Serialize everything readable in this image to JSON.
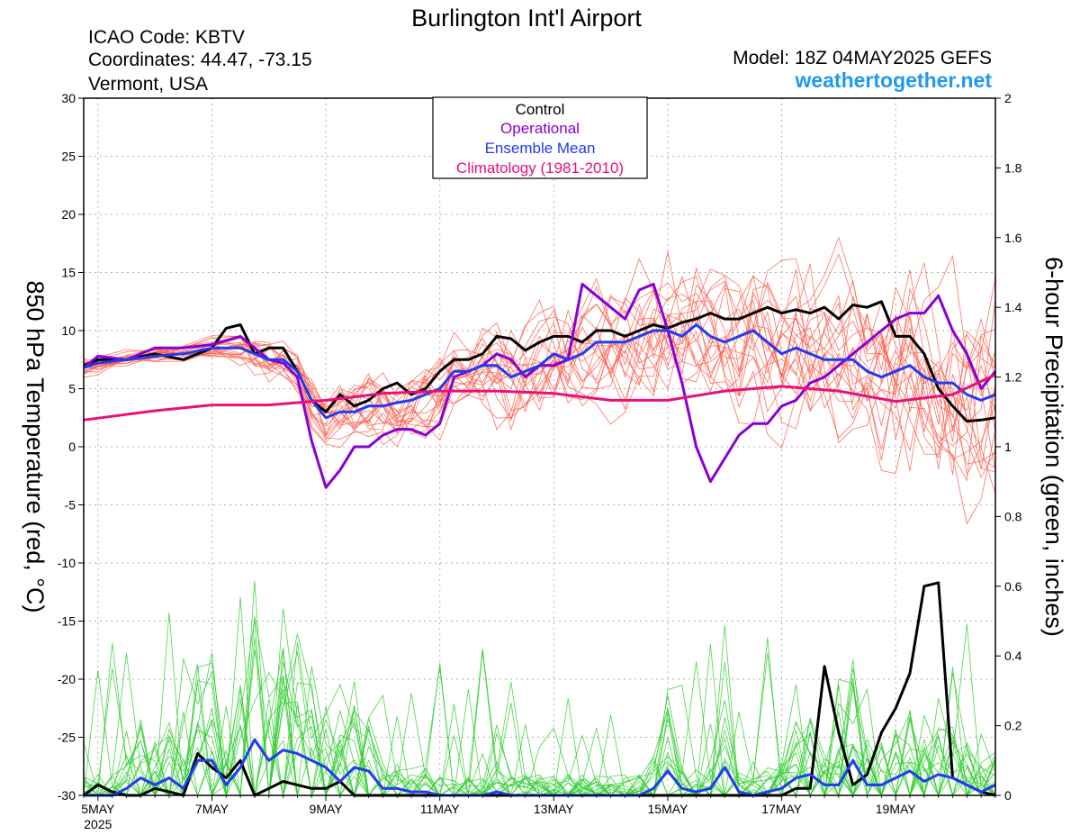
{
  "header": {
    "title": "Burlington Int'l Airport",
    "icao": "ICAO Code: KBTV",
    "coords": "Coordinates: 44.47, -73.15",
    "region": "Vermont, USA",
    "model": "Model: 18Z 04MAY2025 GEFS",
    "site": "weathertogether.net"
  },
  "legend": {
    "items": [
      {
        "label": "Control",
        "color": "#000000"
      },
      {
        "label": "Operational",
        "color": "#8a00d4"
      },
      {
        "label": "Ensemble Mean",
        "color": "#1f3cf0"
      },
      {
        "label": "Climatology (1981-2010)",
        "color": "#e8107a"
      }
    ]
  },
  "chart_data": {
    "type": "line",
    "ylabel_left": "850 hPa Temperature (red, °C)",
    "ylabel_right": "6-hour Precipitation (green, inches)",
    "ylim_left": [
      -30,
      30
    ],
    "ylim_right": [
      0,
      2
    ],
    "yticks_left": [
      "30",
      "25",
      "20",
      "15",
      "10",
      "5",
      "0",
      "-5",
      "-10",
      "-15",
      "-20",
      "-25",
      "-30"
    ],
    "yticks_right": [
      "2",
      "1.8",
      "1.6",
      "1.4",
      "1.2",
      "1",
      "0.8",
      "0.6",
      "0.4",
      "0.2",
      "0"
    ],
    "xticks": [
      {
        "label": "5MAY",
        "sub": "2025",
        "day": 0
      },
      {
        "label": "7MAY",
        "day": 2
      },
      {
        "label": "9MAY",
        "day": 4
      },
      {
        "label": "11MAY",
        "day": 6
      },
      {
        "label": "13MAY",
        "day": 8
      },
      {
        "label": "15MAY",
        "day": 10
      },
      {
        "label": "17MAY",
        "day": 12
      },
      {
        "label": "19MAY",
        "day": 14
      }
    ],
    "x_range_days": [
      -0.25,
      15.75
    ],
    "grid": true,
    "series_temperature": [
      {
        "name": "Control",
        "color": "#000000",
        "x": [
          -0.25,
          0,
          0.5,
          1,
          1.5,
          2,
          2.25,
          2.5,
          2.75,
          3,
          3.25,
          3.5,
          3.75,
          4,
          4.25,
          4.5,
          4.75,
          5,
          5.25,
          5.5,
          5.75,
          6,
          6.25,
          6.5,
          6.75,
          7,
          7.25,
          7.5,
          7.75,
          8,
          8.25,
          8.5,
          8.75,
          9,
          9.25,
          9.5,
          9.75,
          10,
          10.25,
          10.5,
          10.75,
          11,
          11.25,
          11.5,
          11.75,
          12,
          12.25,
          12.5,
          12.75,
          13,
          13.25,
          13.5,
          13.75,
          14,
          14.25,
          14.5,
          14.75,
          15,
          15.25,
          15.5,
          15.75
        ],
        "y": [
          7,
          7.5,
          7.5,
          8,
          7.5,
          8.5,
          10.2,
          10.5,
          8,
          8.5,
          8.5,
          6.5,
          4,
          3,
          4.5,
          3.5,
          4,
          5,
          5.5,
          4.5,
          5,
          6.5,
          7.5,
          7.5,
          8,
          9.5,
          9.3,
          8.3,
          9,
          9.5,
          9.5,
          9,
          10,
          10,
          9.5,
          10,
          10.5,
          10.2,
          10.7,
          11,
          11.5,
          11,
          11,
          11.5,
          12,
          11.5,
          11.8,
          11.5,
          12,
          11,
          12.2,
          12,
          12.5,
          9.5,
          9.5,
          8,
          5,
          3.5,
          2.2,
          2.3,
          2.5
        ]
      },
      {
        "name": "Operational",
        "color": "#8a00d4",
        "x": [
          -0.25,
          0,
          0.5,
          1,
          1.5,
          2,
          2.5,
          2.75,
          3,
          3.25,
          3.5,
          3.75,
          4,
          4.25,
          4.5,
          4.75,
          5,
          5.25,
          5.5,
          5.75,
          6,
          6.25,
          6.5,
          6.75,
          7,
          7.25,
          7.5,
          7.75,
          8,
          8.25,
          8.5,
          8.75,
          9,
          9.25,
          9.5,
          9.75,
          10,
          10.25,
          10.5,
          10.75,
          11,
          11.25,
          11.5,
          11.75,
          12,
          12.25,
          12.5,
          12.75,
          13,
          13.25,
          13.5,
          13.75,
          14,
          14.25,
          14.5,
          14.75,
          15,
          15.25,
          15.5,
          15.75
        ],
        "y": [
          6.8,
          7.8,
          7.5,
          8.5,
          8.5,
          8.8,
          9.5,
          8.5,
          7.5,
          7.2,
          6,
          0.5,
          -3.5,
          -2,
          0,
          0,
          1,
          1.5,
          1.5,
          1,
          2,
          6,
          6.5,
          7,
          8,
          7.5,
          6,
          7,
          7,
          7.5,
          14,
          13,
          12,
          11,
          13.5,
          14,
          10,
          5.5,
          0,
          -3,
          -1,
          1,
          2,
          2,
          3.5,
          4,
          5.5,
          6,
          7,
          8,
          9,
          10,
          11,
          11.5,
          11.5,
          13,
          10,
          8,
          5,
          6.5
        ]
      },
      {
        "name": "Ensemble Mean",
        "color": "#1f3cf0",
        "x": [
          -0.25,
          0,
          0.5,
          1,
          1.5,
          2,
          2.5,
          2.75,
          3,
          3.25,
          3.5,
          3.75,
          4,
          4.25,
          4.5,
          4.75,
          5,
          5.25,
          5.5,
          5.75,
          6,
          6.25,
          6.5,
          6.75,
          7,
          7.25,
          7.5,
          7.75,
          8,
          8.25,
          8.5,
          8.75,
          9,
          9.25,
          9.5,
          9.75,
          10,
          10.25,
          10.5,
          10.75,
          11,
          11.25,
          11.5,
          11.75,
          12,
          12.25,
          12.5,
          12.75,
          13,
          13.25,
          13.5,
          13.75,
          14,
          14.25,
          14.5,
          14.75,
          15,
          15.25,
          15.5,
          15.75
        ],
        "y": [
          6.8,
          7.2,
          7.5,
          7.8,
          8,
          8.5,
          8.5,
          8,
          7.5,
          7.5,
          6.5,
          4,
          2.5,
          3,
          3,
          3.5,
          3.5,
          3.8,
          4,
          4.5,
          5,
          6.5,
          6.5,
          7,
          7,
          6,
          6.5,
          7,
          8,
          7.5,
          8,
          9,
          9,
          9,
          9.5,
          10,
          10,
          9.5,
          10.5,
          9.5,
          9,
          9.5,
          10,
          9,
          8,
          8.5,
          8,
          7.5,
          7.5,
          7.5,
          6.5,
          6,
          6.5,
          7,
          6,
          5.5,
          5.5,
          4.5,
          4,
          4.5
        ]
      },
      {
        "name": "Climatology (1981-2010)",
        "color": "#e8107a",
        "x": [
          -0.25,
          1,
          2,
          3,
          4,
          5,
          6,
          7,
          8,
          9,
          10,
          11,
          12,
          13,
          14,
          15,
          15.75
        ],
        "y": [
          2.3,
          3.1,
          3.6,
          3.6,
          4,
          4.6,
          4.8,
          4.8,
          4.6,
          4,
          4,
          4.8,
          5.2,
          4.8,
          3.9,
          4.5,
          6.2
        ]
      }
    ],
    "series_precipitation": [
      {
        "name": "Control",
        "color": "#000000",
        "x": [
          -0.25,
          0,
          0.25,
          0.5,
          0.75,
          1,
          1.25,
          1.5,
          1.75,
          2,
          2.25,
          2.5,
          2.75,
          3,
          3.25,
          3.5,
          3.75,
          4,
          4.25,
          4.5,
          4.75,
          5,
          12,
          12.25,
          12.5,
          12.75,
          13,
          13.25,
          13.5,
          13.75,
          14,
          14.25,
          14.5,
          14.75,
          15,
          15.25,
          15.5,
          15.75
        ],
        "y": [
          0,
          0.03,
          0.01,
          0,
          0,
          0.02,
          0.01,
          0,
          0.12,
          0.08,
          0.05,
          0.1,
          0,
          0.02,
          0.04,
          0.03,
          0.02,
          0.02,
          0.04,
          0,
          0,
          0,
          0,
          0.02,
          0.02,
          0.37,
          0.18,
          0.03,
          0.06,
          0.18,
          0.25,
          0.35,
          0.6,
          0.61,
          0.05,
          0.03,
          0.01,
          0
        ]
      },
      {
        "name": "Ensemble Mean",
        "color": "#1f3cf0",
        "x": [
          -0.25,
          0,
          0.25,
          0.5,
          0.75,
          1,
          1.25,
          1.5,
          1.75,
          2,
          2.25,
          2.5,
          2.75,
          3,
          3.25,
          3.5,
          3.75,
          4,
          4.25,
          4.5,
          4.75,
          5,
          5.25,
          5.5,
          5.75,
          6,
          6.25,
          6.5,
          6.75,
          7,
          7.25,
          7.5,
          7.75,
          8,
          8.25,
          8.5,
          8.75,
          9,
          9.25,
          9.5,
          9.75,
          10,
          10.25,
          10.5,
          10.75,
          11,
          11.25,
          11.5,
          11.75,
          12,
          12.25,
          12.5,
          12.75,
          13,
          13.25,
          13.5,
          13.75,
          14,
          14.25,
          14.5,
          14.75,
          15,
          15.25,
          15.5,
          15.75
        ],
        "y": [
          0,
          0,
          0,
          0.02,
          0.05,
          0.03,
          0.05,
          0.02,
          0.1,
          0.1,
          0.03,
          0.08,
          0.16,
          0.1,
          0.13,
          0.12,
          0.1,
          0.08,
          0.04,
          0.08,
          0.07,
          0.02,
          0.02,
          0.01,
          0.01,
          0,
          0,
          0,
          0,
          0.01,
          0,
          0,
          0,
          0,
          0,
          0,
          0,
          0,
          0,
          0,
          0.02,
          0.07,
          0.02,
          0.01,
          0.02,
          0.08,
          0.01,
          0,
          0.01,
          0.02,
          0.05,
          0.06,
          0.03,
          0.03,
          0.1,
          0.03,
          0.03,
          0.05,
          0.07,
          0.04,
          0.06,
          0.05,
          0.03,
          0.01,
          0.03
        ]
      }
    ],
    "ensemble_members": {
      "temperature_count": 20,
      "precipitation_count": 20,
      "temperature_color": "#ff5a4a",
      "precipitation_color": "#2ecc2e"
    }
  }
}
